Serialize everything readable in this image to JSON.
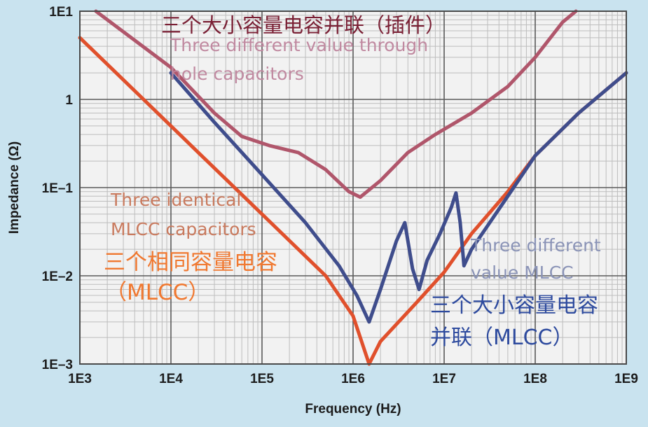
{
  "chart_data": {
    "type": "line",
    "xlabel": "Frequency (Hz)",
    "ylabel": "Impedance (Ω)",
    "x_scale": "log",
    "y_scale": "log",
    "xlim": [
      1000,
      1000000000
    ],
    "ylim": [
      0.001,
      10
    ],
    "x_ticks": [
      "1E3",
      "1E4",
      "1E5",
      "1E6",
      "1E7",
      "1E8",
      "1E9"
    ],
    "y_ticks": [
      "1E–3",
      "1E–2",
      "1E–1",
      "1",
      "1E1"
    ],
    "grid": true,
    "series": [
      {
        "color": "#b0566b",
        "points": [
          [
            1500,
            10
          ],
          [
            10000,
            2.3
          ],
          [
            30000,
            0.7
          ],
          [
            60000,
            0.38
          ],
          [
            120000,
            0.3
          ],
          [
            250000,
            0.25
          ],
          [
            500000,
            0.16
          ],
          [
            900000,
            0.09
          ],
          [
            1200000,
            0.078
          ],
          [
            2000000,
            0.12
          ],
          [
            4000000,
            0.25
          ],
          [
            8000000,
            0.4
          ],
          [
            20000000,
            0.7
          ],
          [
            50000000,
            1.4
          ],
          [
            100000000,
            3
          ],
          [
            200000000,
            7.5
          ],
          [
            280000000,
            10
          ]
        ]
      },
      {
        "color": "#e0502c",
        "points": [
          [
            1000,
            5
          ],
          [
            5000,
            1
          ],
          [
            20000,
            0.25
          ],
          [
            100000,
            0.05
          ],
          [
            500000,
            0.01
          ],
          [
            1000000,
            0.0035
          ],
          [
            1500000,
            0.001
          ],
          [
            2000000,
            0.0018
          ],
          [
            5000000,
            0.005
          ],
          [
            10000000,
            0.011
          ],
          [
            20000000,
            0.03
          ],
          [
            50000000,
            0.09
          ],
          [
            100000000,
            0.23
          ],
          [
            300000000,
            0.7
          ],
          [
            1000000000,
            2
          ]
        ]
      },
      {
        "color": "#3f4d8c",
        "points": [
          [
            10000,
            2
          ],
          [
            30000,
            0.55
          ],
          [
            100000,
            0.14
          ],
          [
            300000,
            0.04
          ],
          [
            700000,
            0.013
          ],
          [
            1100000,
            0.006
          ],
          [
            1500000,
            0.003
          ],
          [
            2000000,
            0.007
          ],
          [
            3000000,
            0.025
          ],
          [
            3700000,
            0.04
          ],
          [
            4500000,
            0.012
          ],
          [
            5300000,
            0.007
          ],
          [
            6500000,
            0.015
          ],
          [
            9000000,
            0.03
          ],
          [
            12000000,
            0.06
          ],
          [
            13500000,
            0.087
          ],
          [
            15000000,
            0.04
          ],
          [
            16500000,
            0.013
          ],
          [
            20000000,
            0.02
          ],
          [
            50000000,
            0.08
          ],
          [
            100000000,
            0.23
          ],
          [
            300000000,
            0.7
          ],
          [
            1000000000,
            2
          ]
        ]
      }
    ],
    "annotations": [
      {
        "text": "三个大小容量电容并联（插件）",
        "color": "#7a1f34"
      },
      {
        "text": "Three different value through",
        "color": "#c089a0"
      },
      {
        "text": "hole capacitors",
        "color": "#c089a0"
      },
      {
        "text": "Three identical",
        "color": "#c97a5e"
      },
      {
        "text": "MLCC capacitors",
        "color": "#c97a5e"
      },
      {
        "text": "三个相同容量电容",
        "color": "#f07830"
      },
      {
        "text": "（MLCC）",
        "color": "#f07830"
      },
      {
        "text": "Three different",
        "color": "#8a93b6"
      },
      {
        "text": "value MLCC",
        "color": "#8a93b6"
      },
      {
        "text": "三个大小容量电容",
        "color": "#2d4a9e"
      },
      {
        "text": "并联（MLCC）",
        "color": "#2d4a9e"
      }
    ]
  },
  "colors": {
    "plot_bg": "#f2f2f2",
    "page_bg": "#c9e3ef",
    "grid_minor": "#bdbdbd",
    "grid_major": "#5a5a5a"
  }
}
